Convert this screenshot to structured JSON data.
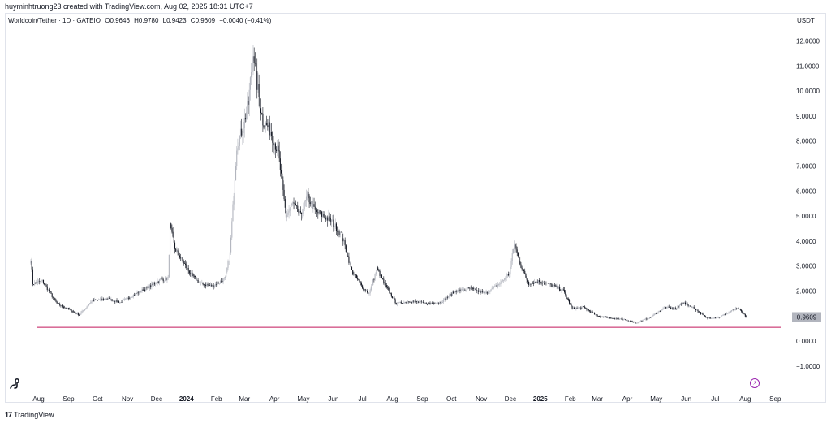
{
  "header": {
    "credit": "huyminhtruong23 created with TradingView.com, Aug 02, 2025 18:31 UTC+7"
  },
  "legend": {
    "symbol": "Worldcoin/Tether · 1D · GATEIO",
    "open_label": "O",
    "open": "0.9646",
    "high_label": "H",
    "high": "0.9780",
    "low_label": "L",
    "low": "0.9423",
    "close_label": "C",
    "close": "0.9609",
    "change": "−0.0040 (−0.41%)"
  },
  "currency": "USDT",
  "footer": {
    "brand": "TradingView"
  },
  "colors": {
    "up": "#b2b5be",
    "down": "#131722",
    "hline": "#c2185b",
    "badge": "#b2b5be",
    "accent": "#9c27b0"
  },
  "chart_data": {
    "type": "candlestick",
    "y_ticks": [
      "12.0000",
      "11.0000",
      "10.0000",
      "9.0000",
      "8.0000",
      "7.0000",
      "6.0000",
      "5.0000",
      "4.0000",
      "3.0000",
      "2.0000",
      "1.0000",
      "0.0000",
      "−1.0000"
    ],
    "ylim": [
      -1.6,
      12.6
    ],
    "x_ticks": [
      "Aug",
      "Sep",
      "Oct",
      "Nov",
      "Dec",
      "2024",
      "Feb",
      "Mar",
      "Apr",
      "May",
      "Jun",
      "Jul",
      "Aug",
      "Sep",
      "Oct",
      "Nov",
      "Dec",
      "2025",
      "Feb",
      "Mar",
      "Apr",
      "May",
      "Jun",
      "Jul",
      "Aug",
      "Sep"
    ],
    "x_tick_bold": [
      false,
      false,
      false,
      false,
      false,
      true,
      false,
      false,
      false,
      false,
      false,
      false,
      false,
      false,
      false,
      false,
      false,
      true,
      false,
      false,
      false,
      false,
      false,
      false,
      false,
      false
    ],
    "last_price": "0.9609",
    "horizontal_line": 0.55,
    "anchors": [
      [
        "2023-07-24",
        3.3
      ],
      [
        "2023-07-26",
        2.3
      ],
      [
        "2023-08-05",
        2.4
      ],
      [
        "2023-08-20",
        1.5
      ],
      [
        "2023-09-05",
        1.2
      ],
      [
        "2023-09-12",
        1.05
      ],
      [
        "2023-09-25",
        1.6
      ],
      [
        "2023-10-10",
        1.7
      ],
      [
        "2023-10-25",
        1.55
      ],
      [
        "2023-11-10",
        1.9
      ],
      [
        "2023-11-25",
        2.2
      ],
      [
        "2023-12-05",
        2.45
      ],
      [
        "2023-12-13",
        2.5
      ],
      [
        "2023-12-15",
        4.6
      ],
      [
        "2023-12-20",
        3.7
      ],
      [
        "2023-12-28",
        3.2
      ],
      [
        "2024-01-05",
        2.7
      ],
      [
        "2024-01-15",
        2.3
      ],
      [
        "2024-01-28",
        2.2
      ],
      [
        "2024-02-10",
        2.5
      ],
      [
        "2024-02-15",
        3.5
      ],
      [
        "2024-02-22",
        7.8
      ],
      [
        "2024-02-28",
        8.5
      ],
      [
        "2024-03-05",
        9.5
      ],
      [
        "2024-03-10",
        11.7
      ],
      [
        "2024-03-13",
        10.5
      ],
      [
        "2024-03-20",
        8.8
      ],
      [
        "2024-03-28",
        8.4
      ],
      [
        "2024-04-05",
        7.5
      ],
      [
        "2024-04-13",
        5.0
      ],
      [
        "2024-04-20",
        5.5
      ],
      [
        "2024-04-28",
        5.0
      ],
      [
        "2024-05-05",
        5.8
      ],
      [
        "2024-05-13",
        5.2
      ],
      [
        "2024-05-22",
        5.0
      ],
      [
        "2024-05-30",
        4.8
      ],
      [
        "2024-06-10",
        4.2
      ],
      [
        "2024-06-20",
        2.8
      ],
      [
        "2024-07-02",
        2.1
      ],
      [
        "2024-07-08",
        1.9
      ],
      [
        "2024-07-16",
        2.9
      ],
      [
        "2024-07-25",
        2.2
      ],
      [
        "2024-08-05",
        1.5
      ],
      [
        "2024-08-20",
        1.6
      ],
      [
        "2024-09-05",
        1.5
      ],
      [
        "2024-09-20",
        1.55
      ],
      [
        "2024-10-05",
        2.0
      ],
      [
        "2024-10-20",
        2.1
      ],
      [
        "2024-11-05",
        1.9
      ],
      [
        "2024-11-20",
        2.3
      ],
      [
        "2024-11-30",
        2.7
      ],
      [
        "2024-12-05",
        3.9
      ],
      [
        "2024-12-12",
        3.0
      ],
      [
        "2024-12-20",
        2.3
      ],
      [
        "2024-12-31",
        2.4
      ],
      [
        "2025-01-15",
        2.2
      ],
      [
        "2025-01-25",
        2.0
      ],
      [
        "2025-02-03",
        1.3
      ],
      [
        "2025-02-15",
        1.35
      ],
      [
        "2025-03-01",
        1.0
      ],
      [
        "2025-03-20",
        0.9
      ],
      [
        "2025-04-05",
        0.8
      ],
      [
        "2025-04-10",
        0.72
      ],
      [
        "2025-04-25",
        0.95
      ],
      [
        "2025-05-10",
        1.35
      ],
      [
        "2025-05-22",
        1.3
      ],
      [
        "2025-05-28",
        1.55
      ],
      [
        "2025-06-10",
        1.3
      ],
      [
        "2025-06-22",
        0.92
      ],
      [
        "2025-07-05",
        0.95
      ],
      [
        "2025-07-20",
        1.25
      ],
      [
        "2025-07-25",
        1.3
      ],
      [
        "2025-08-02",
        0.9609
      ]
    ]
  }
}
